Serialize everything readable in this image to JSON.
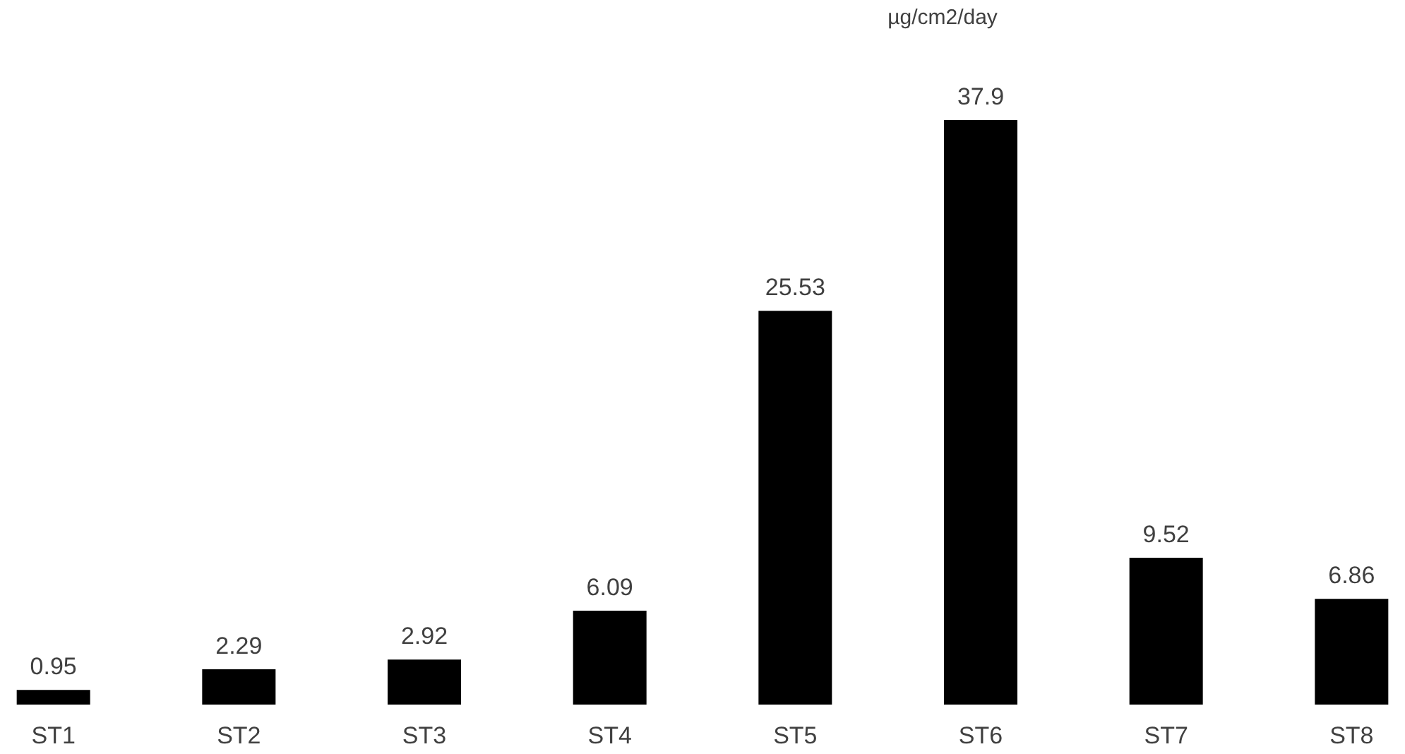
{
  "chart_data": {
    "type": "bar",
    "title": "µg/cm2/day",
    "categories": [
      "ST1",
      "ST2",
      "ST3",
      "ST4",
      "ST5",
      "ST6",
      "ST7",
      "ST8"
    ],
    "values": [
      0.95,
      2.29,
      2.92,
      6.09,
      25.53,
      37.9,
      9.52,
      6.86
    ],
    "color": "#000000",
    "data_labels": true
  }
}
